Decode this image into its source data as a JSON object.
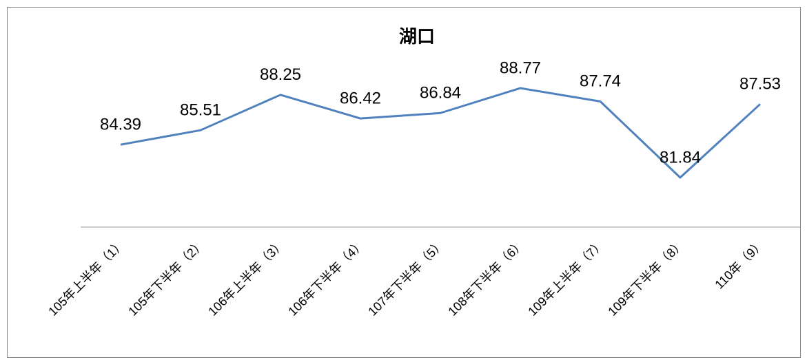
{
  "chart_data": {
    "type": "line",
    "title": "湖口",
    "categories": [
      "105年上半年（1）",
      "105年下半年（2）",
      "106年上半年（3）",
      "106年下半年（4）",
      "107年下半年（5）",
      "108年下半年（6）",
      "109年上半年（7）",
      "109年下半年（8）",
      "110年（9）"
    ],
    "values": [
      84.39,
      85.51,
      88.25,
      86.42,
      86.84,
      88.77,
      87.74,
      81.84,
      87.53
    ],
    "color": "#4f81bd",
    "ylim": [
      78,
      90
    ]
  }
}
